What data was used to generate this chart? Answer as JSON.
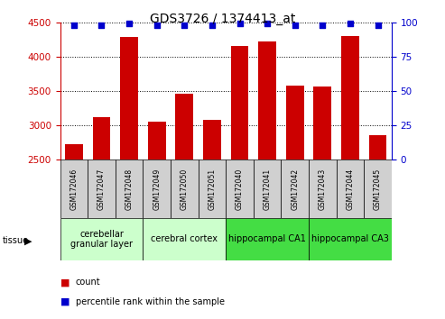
{
  "title": "GDS3726 / 1374413_at",
  "samples": [
    "GSM172046",
    "GSM172047",
    "GSM172048",
    "GSM172049",
    "GSM172050",
    "GSM172051",
    "GSM172040",
    "GSM172041",
    "GSM172042",
    "GSM172043",
    "GSM172044",
    "GSM172045"
  ],
  "counts": [
    2720,
    3120,
    4290,
    3050,
    3460,
    3075,
    4160,
    4220,
    3580,
    3560,
    4300,
    2860
  ],
  "percentiles": [
    98,
    98,
    99,
    98,
    98,
    98,
    99,
    99,
    98,
    98,
    99,
    98
  ],
  "ylim_left": [
    2500,
    4500
  ],
  "ylim_right": [
    0,
    100
  ],
  "yticks_left": [
    2500,
    3000,
    3500,
    4000,
    4500
  ],
  "yticks_right": [
    0,
    25,
    50,
    75,
    100
  ],
  "bar_color": "#cc0000",
  "dot_color": "#0000cc",
  "grid_color": "#000000",
  "bar_width": 0.65,
  "tissue_groups": [
    {
      "label": "cerebellar\ngranular layer",
      "start": 0,
      "end": 3,
      "color": "#ccffcc"
    },
    {
      "label": "cerebral cortex",
      "start": 3,
      "end": 6,
      "color": "#ccffcc"
    },
    {
      "label": "hippocampal CA1",
      "start": 6,
      "end": 9,
      "color": "#44dd44"
    },
    {
      "label": "hippocampal CA3",
      "start": 9,
      "end": 12,
      "color": "#44dd44"
    }
  ],
  "tissue_label": "tissue",
  "legend_count_label": "count",
  "legend_pct_label": "percentile rank within the sample",
  "bg_color": "#ffffff",
  "plot_bg_color": "#ffffff",
  "tick_label_color_left": "#cc0000",
  "tick_label_color_right": "#0000cc",
  "title_color": "#000000",
  "title_fontsize": 10,
  "tick_fontsize": 7.5,
  "sample_fontsize": 5.5,
  "tissue_fontsize": 7,
  "legend_fontsize": 7
}
